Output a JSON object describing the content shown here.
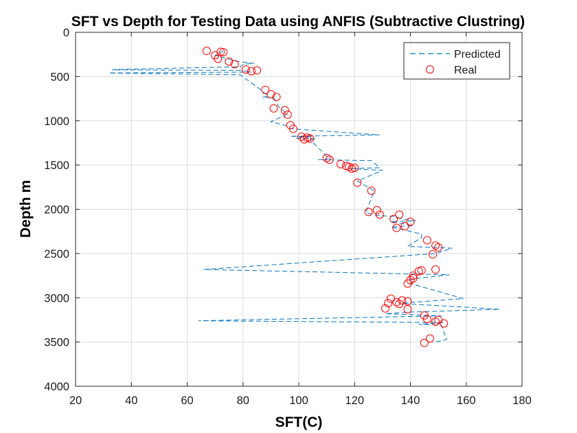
{
  "colors": {
    "predicted": "#0072BD",
    "real": "#FF0000",
    "axis": "#262626",
    "grid": "#dcdcdc"
  },
  "chart_data": {
    "type": "line",
    "title": "SFT vs Depth for Testing Data using ANFIS (Subtractive Clustring)",
    "xlabel": "SFT(C)",
    "ylabel": "Depth m",
    "xlim": [
      20,
      180
    ],
    "ylim": [
      0,
      4000
    ],
    "y_reversed": true,
    "x_ticks": [
      20,
      40,
      60,
      80,
      100,
      120,
      140,
      160,
      180
    ],
    "y_ticks": [
      0,
      500,
      1000,
      1500,
      2000,
      2500,
      3000,
      3500,
      4000
    ],
    "x_tick_labels": [
      "20",
      "40",
      "60",
      "80",
      "100",
      "120",
      "140",
      "160",
      "180"
    ],
    "y_tick_labels": [
      "0",
      "500",
      "1000",
      "1500",
      "2000",
      "2500",
      "3000",
      "3500",
      "4000"
    ],
    "grid": true,
    "legend_position": "top-right",
    "series": [
      {
        "name": "Predicted",
        "style": "dashed-line",
        "points": [
          [
            73,
            210
          ],
          [
            72,
            230
          ],
          [
            70,
            260
          ],
          [
            78,
            330
          ],
          [
            84,
            350
          ],
          [
            80,
            360
          ],
          [
            79,
            390
          ],
          [
            34,
            420
          ],
          [
            33,
            425
          ],
          [
            78,
            430
          ],
          [
            82,
            440
          ],
          [
            83,
            450
          ],
          [
            32,
            460
          ],
          [
            79,
            480
          ],
          [
            86,
            640
          ],
          [
            89,
            720
          ],
          [
            87,
            735
          ],
          [
            91,
            740
          ],
          [
            93,
            850
          ],
          [
            96,
            925
          ],
          [
            90,
            1010
          ],
          [
            96,
            1060
          ],
          [
            97,
            1090
          ],
          [
            129,
            1160
          ],
          [
            97,
            1175
          ],
          [
            104,
            1180
          ],
          [
            100,
            1185
          ],
          [
            101,
            1190
          ],
          [
            99,
            1195
          ],
          [
            102,
            1200
          ],
          [
            106,
            1205
          ],
          [
            104,
            1215
          ],
          [
            111,
            1430
          ],
          [
            107,
            1440
          ],
          [
            126,
            1450
          ],
          [
            129,
            1530
          ],
          [
            118,
            1540
          ],
          [
            130,
            1560
          ],
          [
            121,
            1680
          ],
          [
            127,
            1790
          ],
          [
            124,
            2040
          ],
          [
            128,
            2070
          ],
          [
            134,
            2080
          ],
          [
            137,
            2110
          ],
          [
            142,
            2130
          ],
          [
            133,
            2140
          ],
          [
            141,
            2185
          ],
          [
            133,
            2200
          ],
          [
            144,
            2280
          ],
          [
            144,
            2320
          ],
          [
            139,
            2420
          ],
          [
            155,
            2440
          ],
          [
            149,
            2500
          ],
          [
            66,
            2680
          ],
          [
            154,
            2740
          ],
          [
            140,
            2790
          ],
          [
            141,
            2810
          ],
          [
            140,
            2840
          ],
          [
            159,
            3010
          ],
          [
            137,
            3060
          ],
          [
            140,
            3070
          ],
          [
            172,
            3130
          ],
          [
            141,
            3160
          ],
          [
            136,
            3170
          ],
          [
            131,
            3180
          ],
          [
            151,
            3205
          ],
          [
            64,
            3260
          ],
          [
            152,
            3280
          ],
          [
            143,
            3300
          ],
          [
            151,
            3310
          ],
          [
            153,
            3470
          ],
          [
            148,
            3510
          ]
        ]
      },
      {
        "name": "Real",
        "style": "open-circle",
        "points": [
          [
            67,
            210
          ],
          [
            72,
            220
          ],
          [
            73,
            225
          ],
          [
            70,
            260
          ],
          [
            71,
            300
          ],
          [
            75,
            330
          ],
          [
            77,
            360
          ],
          [
            81,
            420
          ],
          [
            83,
            440
          ],
          [
            85,
            430
          ],
          [
            88,
            650
          ],
          [
            90,
            700
          ],
          [
            92,
            730
          ],
          [
            91,
            860
          ],
          [
            95,
            880
          ],
          [
            96,
            930
          ],
          [
            97,
            1050
          ],
          [
            98,
            1090
          ],
          [
            101,
            1180
          ],
          [
            103,
            1190
          ],
          [
            104,
            1200
          ],
          [
            102,
            1210
          ],
          [
            110,
            1420
          ],
          [
            111,
            1440
          ],
          [
            115,
            1490
          ],
          [
            117,
            1510
          ],
          [
            118,
            1520
          ],
          [
            120,
            1530
          ],
          [
            119,
            1540
          ],
          [
            121,
            1700
          ],
          [
            126,
            1790
          ],
          [
            125,
            2030
          ],
          [
            128,
            2010
          ],
          [
            129,
            2060
          ],
          [
            134,
            2110
          ],
          [
            136,
            2060
          ],
          [
            138,
            2190
          ],
          [
            135,
            2210
          ],
          [
            140,
            2140
          ],
          [
            146,
            2350
          ],
          [
            149,
            2410
          ],
          [
            150,
            2430
          ],
          [
            148,
            2510
          ],
          [
            149,
            2680
          ],
          [
            143,
            2700
          ],
          [
            144,
            2690
          ],
          [
            141,
            2750
          ],
          [
            141,
            2780
          ],
          [
            140,
            2800
          ],
          [
            139,
            2840
          ],
          [
            137,
            3030
          ],
          [
            139,
            3040
          ],
          [
            135,
            3050
          ],
          [
            133,
            3010
          ],
          [
            136,
            3070
          ],
          [
            132,
            3060
          ],
          [
            131,
            3120
          ],
          [
            139,
            3130
          ],
          [
            145,
            3200
          ],
          [
            146,
            3240
          ],
          [
            150,
            3250
          ],
          [
            149,
            3270
          ],
          [
            152,
            3290
          ],
          [
            147,
            3460
          ],
          [
            145,
            3510
          ]
        ]
      }
    ]
  }
}
